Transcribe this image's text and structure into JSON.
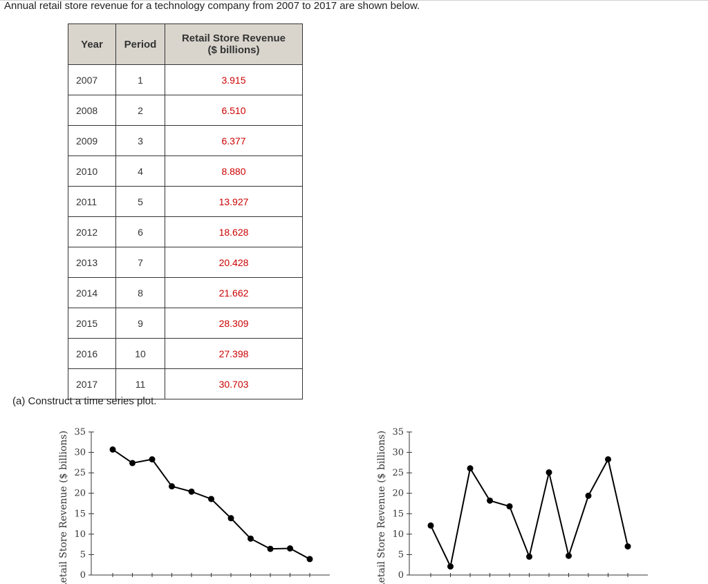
{
  "intro": "Annual retail store revenue for a technology company from 2007 to 2017 are shown below.",
  "table": {
    "headers": {
      "year": "Year",
      "period": "Period",
      "revenue_line1": "Retail Store Revenue",
      "revenue_line2": "($ billions)"
    },
    "rows": [
      {
        "year": "2007",
        "period": "1",
        "revenue": "3.915"
      },
      {
        "year": "2008",
        "period": "2",
        "revenue": "6.510"
      },
      {
        "year": "2009",
        "period": "3",
        "revenue": "6.377"
      },
      {
        "year": "2010",
        "period": "4",
        "revenue": "8.880"
      },
      {
        "year": "2011",
        "period": "5",
        "revenue": "13.927"
      },
      {
        "year": "2012",
        "period": "6",
        "revenue": "18.628"
      },
      {
        "year": "2013",
        "period": "7",
        "revenue": "20.428"
      },
      {
        "year": "2014",
        "period": "8",
        "revenue": "21.662"
      },
      {
        "year": "2015",
        "period": "9",
        "revenue": "28.309"
      },
      {
        "year": "2016",
        "period": "10",
        "revenue": "27.398"
      },
      {
        "year": "2017",
        "period": "11",
        "revenue": "30.703"
      }
    ]
  },
  "part_a": "(a)  Construct a time series plot.",
  "colors": {
    "value_red": "#cc0000",
    "header_bg": "#d9d5cd"
  },
  "chart_data": [
    {
      "type": "line",
      "ylabel": "Retail Store Revenue ($ billions)",
      "yticks": [
        0,
        5,
        10,
        15,
        20,
        25,
        30,
        35
      ],
      "ylim": [
        0,
        35
      ],
      "x": [
        1,
        2,
        3,
        4,
        5,
        6,
        7,
        8,
        9,
        10,
        11
      ],
      "values": [
        30.7,
        27.4,
        28.3,
        21.7,
        20.4,
        18.6,
        13.9,
        8.9,
        6.4,
        6.5,
        3.9
      ]
    },
    {
      "type": "line",
      "ylabel": "Retail Store Revenue ($ billions)",
      "yticks": [
        0,
        5,
        10,
        15,
        20,
        25,
        30,
        35
      ],
      "ylim": [
        0,
        35
      ],
      "x": [
        1,
        2,
        3,
        4,
        5,
        6,
        7,
        8,
        9,
        10,
        11
      ],
      "values": [
        12.1,
        2.1,
        26.1,
        18.2,
        16.8,
        4.5,
        25.1,
        4.7,
        19.4,
        28.3,
        7.0
      ]
    }
  ]
}
